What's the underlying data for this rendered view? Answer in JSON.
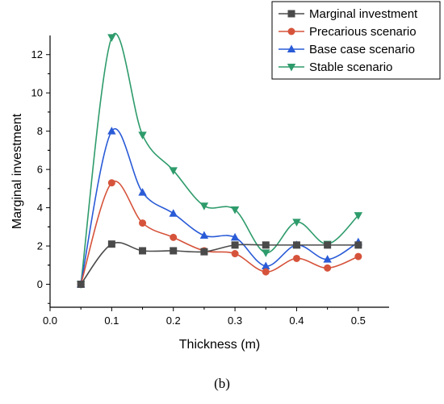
{
  "chart_data": {
    "type": "line",
    "xlabel": "Thickness (m)",
    "ylabel": "Marginal investment",
    "xlim": [
      0.0,
      0.55
    ],
    "ylim": [
      -1.2,
      13.0
    ],
    "x_ticks": [
      0.0,
      0.1,
      0.2,
      0.3,
      0.4,
      0.5
    ],
    "y_ticks": [
      0,
      2,
      4,
      6,
      8,
      10,
      12
    ],
    "grid": false,
    "smooth": true,
    "legend_position": "top-right",
    "x": [
      0.05,
      0.1,
      0.15,
      0.2,
      0.25,
      0.3,
      0.35,
      0.4,
      0.45,
      0.5
    ],
    "series": [
      {
        "name": "Marginal investment",
        "color": "#4a4a4a",
        "marker": "square",
        "values": [
          0.0,
          2.1,
          1.75,
          1.75,
          1.7,
          2.05,
          2.05,
          2.05,
          2.05,
          2.05
        ]
      },
      {
        "name": "Precarious scenario",
        "color": "#d6533b",
        "marker": "circle",
        "values": [
          0.0,
          5.3,
          3.2,
          2.45,
          1.75,
          1.6,
          0.65,
          1.35,
          0.85,
          1.45
        ]
      },
      {
        "name": "Base case scenario",
        "color": "#2a5bd7",
        "marker": "triangle-up",
        "values": [
          0.0,
          8.0,
          4.8,
          3.7,
          2.55,
          2.45,
          0.95,
          2.05,
          1.3,
          2.2
        ]
      },
      {
        "name": "Stable scenario",
        "color": "#2e9b6b",
        "marker": "triangle-down",
        "values": [
          0.0,
          12.9,
          7.8,
          5.95,
          4.1,
          3.9,
          1.65,
          3.25,
          2.1,
          3.6
        ]
      }
    ]
  },
  "panel_label": "(b)"
}
